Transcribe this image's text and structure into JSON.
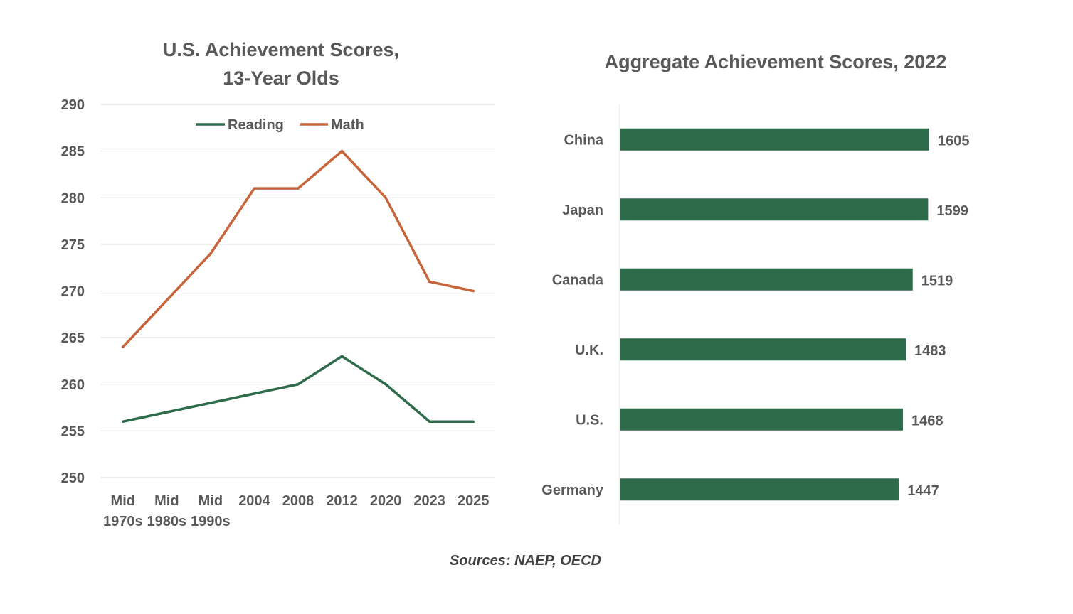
{
  "chart_data": [
    {
      "type": "line",
      "title": "U.S. Achievement Scores, 13-Year Olds",
      "title_lines": [
        "U.S. Achievement Scores,",
        "13-Year Olds"
      ],
      "categories": [
        [
          "Mid",
          "1970s"
        ],
        [
          "Mid",
          "1980s"
        ],
        [
          "Mid",
          "1990s"
        ],
        [
          "2004"
        ],
        [
          "2008"
        ],
        [
          "2012"
        ],
        [
          "2020"
        ],
        [
          "2023"
        ],
        [
          "2025"
        ]
      ],
      "series": [
        {
          "name": "Reading",
          "color": "#2E6B4A",
          "values": [
            256,
            257,
            258,
            259,
            260,
            263,
            260,
            256,
            256
          ]
        },
        {
          "name": "Math",
          "color": "#C8643A",
          "values": [
            264,
            269,
            274,
            281,
            281,
            285,
            280,
            271,
            270
          ]
        }
      ],
      "ylim": [
        250,
        290
      ],
      "yticks": [
        250,
        255,
        260,
        265,
        270,
        275,
        280,
        285,
        290
      ],
      "grid": true,
      "legend": "top-center"
    },
    {
      "type": "bar",
      "orientation": "horizontal",
      "title": "Aggregate Achievement Scores, 2022",
      "categories": [
        "China",
        "Japan",
        "Canada",
        "U.K.",
        "U.S.",
        "Germany"
      ],
      "values": [
        1605,
        1599,
        1519,
        1483,
        1468,
        1447
      ],
      "color": "#2E6B4A",
      "data_labels": true
    }
  ],
  "footer": {
    "source": "Sources: NAEP, OECD"
  }
}
